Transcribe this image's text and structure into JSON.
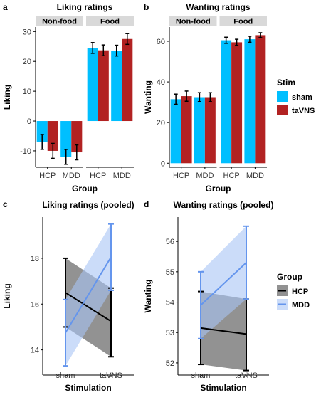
{
  "panels": [
    {
      "id": "a",
      "letter": "a",
      "type": "bar",
      "title": "Liking ratings",
      "ylabel": "Liking",
      "xlabel": "Group",
      "ylim": [
        -15.5,
        31.5
      ],
      "yticks": [
        -10,
        0,
        10,
        20,
        30
      ],
      "facets": [
        {
          "label": "Non-food",
          "groups": [
            {
              "name": "HCP",
              "values": [
                -7,
                -10
              ],
              "errors": [
                2.5,
                2.5
              ]
            },
            {
              "name": "MDD",
              "values": [
                -12,
                -10.5
              ],
              "errors": [
                2.5,
                2.5
              ]
            }
          ]
        },
        {
          "label": "Food",
          "groups": [
            {
              "name": "HCP",
              "values": [
                24.5,
                23.7
              ],
              "errors": [
                1.8,
                1.8
              ]
            },
            {
              "name": "MDD",
              "values": [
                23.6,
                27.5
              ],
              "errors": [
                1.8,
                1.8
              ]
            }
          ]
        }
      ]
    },
    {
      "id": "b",
      "letter": "b",
      "type": "bar",
      "title": "Wanting ratings",
      "ylabel": "Wanting",
      "xlabel": "Group",
      "ylim": [
        -2,
        67
      ],
      "yticks": [
        0,
        20,
        40,
        60
      ],
      "facets": [
        {
          "label": "Non-food",
          "groups": [
            {
              "name": "HCP",
              "values": [
                31.5,
                33
              ],
              "errors": [
                2.5,
                2.5
              ]
            },
            {
              "name": "MDD",
              "values": [
                32.5,
                32.5
              ],
              "errors": [
                2.2,
                2.2
              ]
            }
          ]
        },
        {
          "label": "Food",
          "groups": [
            {
              "name": "HCP",
              "values": [
                60.5,
                59.5
              ],
              "errors": [
                1.5,
                1.5
              ]
            },
            {
              "name": "MDD",
              "values": [
                61,
                63
              ],
              "errors": [
                1.5,
                1.2
              ]
            }
          ]
        }
      ]
    },
    {
      "id": "c",
      "letter": "c",
      "type": "line",
      "title": "Liking ratings (pooled)",
      "ylabel": "Liking",
      "xlabel": "Stimulation",
      "categories": [
        "sham",
        "taVNS"
      ],
      "ylim": [
        12.9,
        19.8
      ],
      "yticks": [
        14,
        16,
        18
      ],
      "series": [
        {
          "name": "HCP",
          "means": [
            16.5,
            15.25
          ],
          "lower": [
            15.0,
            13.7
          ],
          "upper": [
            18.0,
            16.7
          ]
        },
        {
          "name": "MDD",
          "means": [
            14.75,
            18.05
          ],
          "lower": [
            13.3,
            16.6
          ],
          "upper": [
            16.2,
            19.5
          ]
        }
      ]
    },
    {
      "id": "d",
      "letter": "d",
      "type": "line",
      "title": "Wanting ratings (pooled)",
      "ylabel": "Wanting",
      "xlabel": "Stimulation",
      "categories": [
        "sham",
        "taVNS"
      ],
      "ylim": [
        51.6,
        56.8
      ],
      "yticks": [
        52,
        53,
        54,
        55,
        56
      ],
      "series": [
        {
          "name": "HCP",
          "means": [
            53.15,
            52.95
          ],
          "lower": [
            51.95,
            51.75
          ],
          "upper": [
            54.35,
            54.1
          ]
        },
        {
          "name": "MDD",
          "means": [
            53.9,
            55.3
          ],
          "lower": [
            52.8,
            54.1
          ],
          "upper": [
            55.0,
            56.5
          ]
        }
      ]
    }
  ],
  "legends": [
    {
      "id": "stim",
      "title": "Stim",
      "items": [
        {
          "name": "sham",
          "color": "#00BFFF"
        },
        {
          "name": "taVNS",
          "color": "#B22222"
        }
      ]
    },
    {
      "id": "group",
      "title": "Group",
      "items": [
        {
          "name": "HCP",
          "color": "#000000"
        },
        {
          "name": "MDD",
          "color": "#6495ED"
        }
      ]
    }
  ],
  "colors": {
    "sham": "#00BFFF",
    "tavns": "#B22222",
    "hcp_line": "#000000",
    "hcp_ribbon": "#7F7F7F",
    "mdd_line": "#6495ED",
    "mdd_ribbon": "#A9C4F5",
    "strip": "#D9D9D9"
  }
}
